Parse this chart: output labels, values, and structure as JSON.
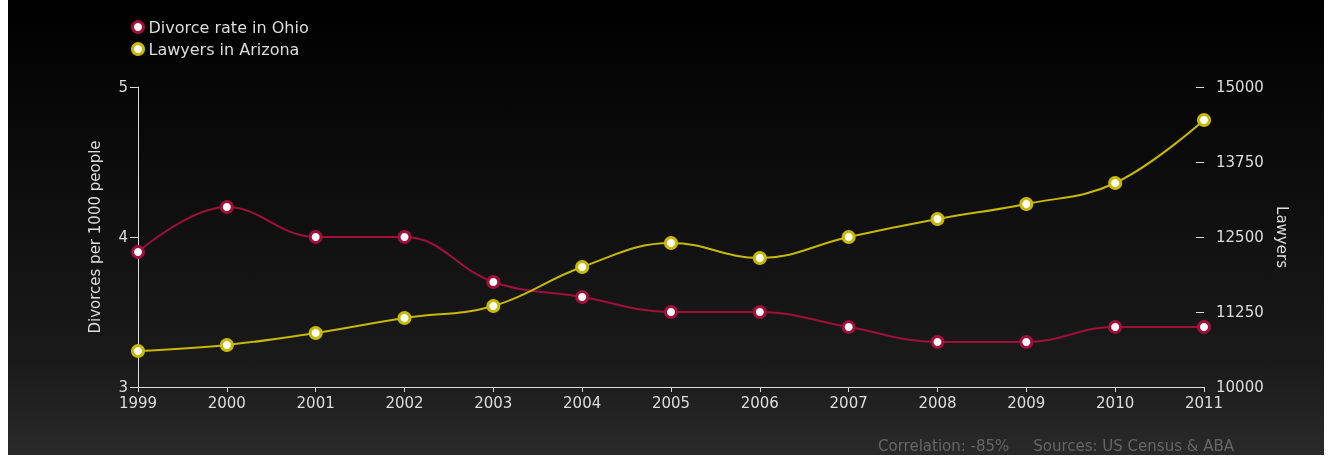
{
  "chart_data": {
    "type": "line",
    "categories": [
      "1999",
      "2000",
      "2001",
      "2002",
      "2003",
      "2004",
      "2005",
      "2006",
      "2007",
      "2008",
      "2009",
      "2010",
      "2011"
    ],
    "series": [
      {
        "name": "Divorce rate in Ohio",
        "color": "#a0103a",
        "values": [
          3.9,
          4.2,
          4.0,
          4.0,
          3.7,
          3.6,
          3.5,
          3.5,
          3.4,
          3.3,
          3.3,
          3.4,
          3.4
        ]
      },
      {
        "name": "Lawyers in Arizona",
        "color": "#c9b800",
        "axis": "y2",
        "values": [
          10600,
          10700,
          10900,
          11150,
          11350,
          12000,
          12400,
          12150,
          12500,
          12800,
          13050,
          13400,
          14450
        ]
      }
    ],
    "ylabel": "Divorces per 1000 people",
    "y2label": "Lawyers",
    "ylim": [
      3,
      5
    ],
    "yticks": [
      3,
      4,
      5
    ],
    "y2lim": [
      10000,
      15000
    ],
    "y2ticks": [
      10000,
      11250,
      12500,
      13750,
      15000
    ],
    "annotations": [
      "Correlation: -85%",
      "Sources: US Census & ABA"
    ],
    "legend": "top left",
    "grid": false,
    "marker": "circle",
    "line_style": "solid"
  }
}
